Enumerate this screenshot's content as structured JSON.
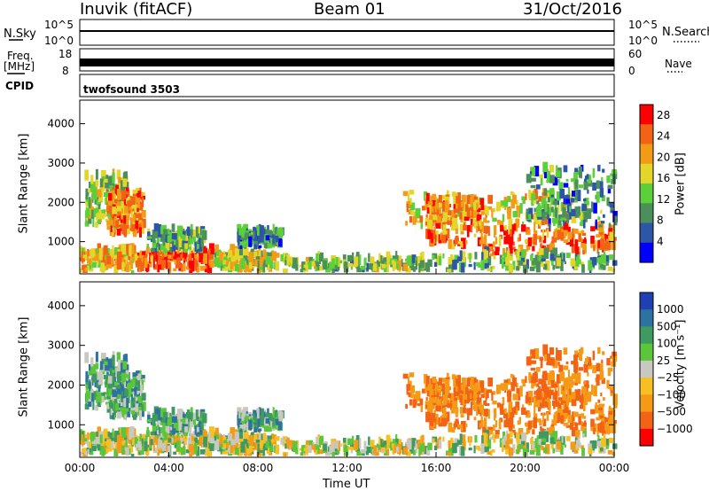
{
  "header": {
    "station": "Inuvik (fitACF)",
    "beam": "Beam 01",
    "date": "31/Oct/2016"
  },
  "strips": {
    "nsky_label": "N.Sky",
    "nsky_ticks": [
      "10^5",
      "10^0"
    ],
    "nsearch_label": "N.Search",
    "nsearch_ticks": [
      "10^5",
      "10^0"
    ],
    "freq_label": "Freq.",
    "freq_unit": "[MHz]",
    "freq_ticks": [
      "18",
      "8"
    ],
    "nave_label": "Nave",
    "nave_ticks": [
      "60",
      "0"
    ],
    "cpid_label": "CPID",
    "cpid_value": "twofsound 3503"
  },
  "chart_data": [
    {
      "type": "heatmap",
      "name": "power-panel",
      "ylabel": "Slant Range [km]",
      "xlabel": "",
      "y_ticks": [
        1000,
        2000,
        3000,
        4000
      ],
      "ylim": [
        180,
        4600
      ],
      "xlim_hours": [
        0,
        24
      ],
      "colorbar": {
        "label": "Power [dB]",
        "ticks": [
          4,
          8,
          12,
          16,
          20,
          24,
          28
        ],
        "range": [
          0,
          30
        ],
        "colors": [
          "#0000ff",
          "#2d55a8",
          "#4d8f5b",
          "#5bd03a",
          "#e3d52a",
          "#f39a16",
          "#f26315",
          "#ff0000"
        ]
      }
    },
    {
      "type": "heatmap",
      "name": "velocity-panel",
      "ylabel": "Slant Range [km]",
      "xlabel": "Time UT",
      "x_tick_labels": [
        "00:00",
        "04:00",
        "08:00",
        "12:00",
        "16:00",
        "20:00",
        "00:00"
      ],
      "y_ticks": [
        1000,
        2000,
        3000,
        4000
      ],
      "ylim": [
        180,
        4600
      ],
      "xlim_hours": [
        0,
        24
      ],
      "colorbar": {
        "label": "Velocity [m s⁻¹]",
        "ticks": [
          "1000",
          "500",
          "100",
          "25",
          "−25",
          "−100",
          "−500",
          "−1000"
        ],
        "colors": [
          "#1f3fb5",
          "#2d72a0",
          "#3f9a5f",
          "#5bc63a",
          "#c8c8c0",
          "#f6c022",
          "#f59a16",
          "#f26315",
          "#ff0000"
        ]
      }
    }
  ]
}
